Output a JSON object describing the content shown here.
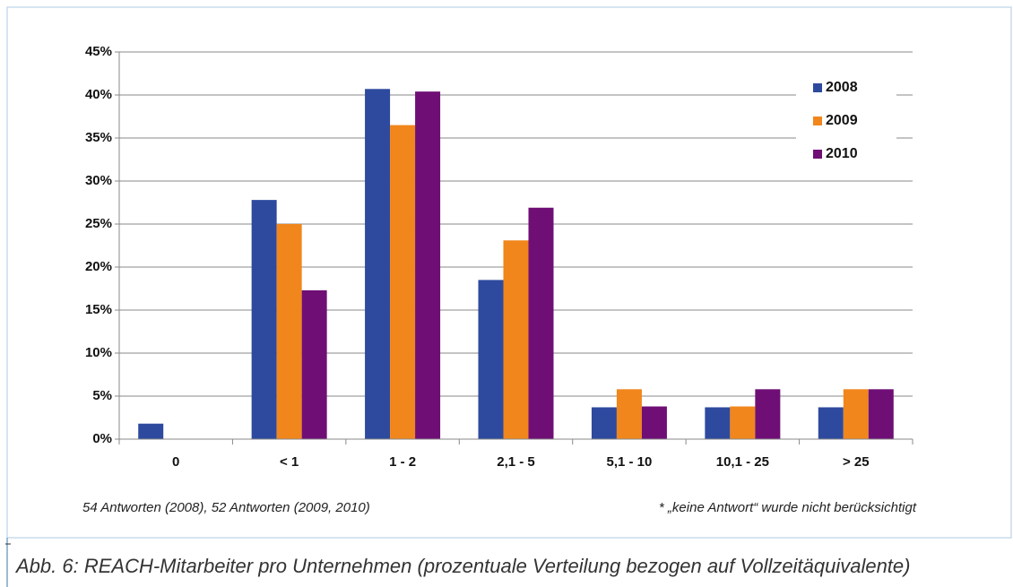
{
  "chart_data": {
    "type": "bar",
    "categories": [
      "0",
      "< 1",
      "1 - 2",
      "2,1 - 5",
      "5,1 - 10",
      "10,1 - 25",
      "> 25"
    ],
    "series": [
      {
        "name": "2008",
        "color": "#2e4a9e",
        "values": [
          1.8,
          27.8,
          40.7,
          18.5,
          3.7,
          3.7,
          3.7
        ]
      },
      {
        "name": "2009",
        "color": "#f0861c",
        "values": [
          0,
          25.0,
          36.5,
          23.1,
          5.8,
          3.8,
          5.8
        ]
      },
      {
        "name": "2010",
        "color": "#6f0f76",
        "values": [
          0,
          17.3,
          40.4,
          26.9,
          3.8,
          5.8,
          5.8
        ]
      }
    ],
    "ylim": [
      0,
      45
    ],
    "yticks": [
      {
        "value": 0,
        "label": "0%"
      },
      {
        "value": 5,
        "label": "5%"
      },
      {
        "value": 10,
        "label": "10%"
      },
      {
        "value": 15,
        "label": "15%"
      },
      {
        "value": 20,
        "label": "20%"
      },
      {
        "value": 25,
        "label": "25%"
      },
      {
        "value": 30,
        "label": "30%"
      },
      {
        "value": 35,
        "label": "35%"
      },
      {
        "value": 40,
        "label": "40%"
      },
      {
        "value": 45,
        "label": "45%"
      }
    ],
    "grid": true,
    "legend": "upper right",
    "annotations": [
      "54 Antworten (2008), 52 Antworten (2009, 2010)",
      "* „keine Antwort“ wurde nicht berücksichtigt"
    ],
    "caption": "Abb. 6:   REACH-Mitarbeiter pro Unternehmen (prozentuale Verteilung bezogen auf Vollzeitäquivalente)"
  }
}
